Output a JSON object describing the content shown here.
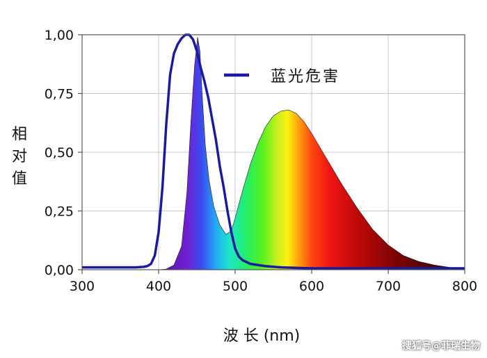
{
  "chart_data": {
    "type": "line",
    "title": "",
    "xlabel": "波 长 (nm)",
    "ylabel": "相对值",
    "xlim": [
      300,
      800
    ],
    "ylim": [
      0,
      1
    ],
    "x_ticks": [
      "300",
      "400",
      "500",
      "600",
      "700",
      "800"
    ],
    "y_ticks": [
      "0,00",
      "0,25",
      "0,50",
      "0,75",
      "1,00"
    ],
    "grid": true,
    "legend_position": "top-right",
    "series": [
      {
        "name": "蓝光危害",
        "kind": "line",
        "color": "#1a1aa0",
        "points": [
          [
            300,
            0.01
          ],
          [
            370,
            0.01
          ],
          [
            380,
            0.012
          ],
          [
            385,
            0.015
          ],
          [
            390,
            0.025
          ],
          [
            395,
            0.06
          ],
          [
            400,
            0.16
          ],
          [
            405,
            0.35
          ],
          [
            410,
            0.62
          ],
          [
            415,
            0.83
          ],
          [
            420,
            0.92
          ],
          [
            425,
            0.96
          ],
          [
            430,
            0.985
          ],
          [
            435,
            1.0
          ],
          [
            440,
            1.0
          ],
          [
            445,
            0.98
          ],
          [
            450,
            0.93
          ],
          [
            455,
            0.86
          ],
          [
            460,
            0.8
          ],
          [
            465,
            0.73
          ],
          [
            470,
            0.64
          ],
          [
            475,
            0.55
          ],
          [
            480,
            0.44
          ],
          [
            485,
            0.35
          ],
          [
            490,
            0.25
          ],
          [
            495,
            0.16
          ],
          [
            500,
            0.09
          ],
          [
            505,
            0.055
          ],
          [
            510,
            0.04
          ],
          [
            520,
            0.025
          ],
          [
            540,
            0.015
          ],
          [
            560,
            0.01
          ],
          [
            600,
            0.006
          ],
          [
            700,
            0.006
          ],
          [
            800,
            0.006
          ]
        ]
      },
      {
        "name": "",
        "kind": "spectrum-area",
        "points": [
          [
            400,
            0.0
          ],
          [
            410,
            0.003
          ],
          [
            420,
            0.02
          ],
          [
            430,
            0.1
          ],
          [
            437,
            0.33
          ],
          [
            442,
            0.62
          ],
          [
            447,
            0.87
          ],
          [
            451,
            0.99
          ],
          [
            454,
            0.93
          ],
          [
            457,
            0.74
          ],
          [
            461,
            0.53
          ],
          [
            466,
            0.38
          ],
          [
            472,
            0.27
          ],
          [
            480,
            0.19
          ],
          [
            488,
            0.15
          ],
          [
            495,
            0.165
          ],
          [
            500,
            0.22
          ],
          [
            510,
            0.34
          ],
          [
            520,
            0.45
          ],
          [
            530,
            0.54
          ],
          [
            540,
            0.61
          ],
          [
            550,
            0.655
          ],
          [
            560,
            0.675
          ],
          [
            570,
            0.68
          ],
          [
            580,
            0.665
          ],
          [
            590,
            0.63
          ],
          [
            600,
            0.58
          ],
          [
            620,
            0.47
          ],
          [
            640,
            0.36
          ],
          [
            660,
            0.26
          ],
          [
            680,
            0.17
          ],
          [
            700,
            0.105
          ],
          [
            720,
            0.06
          ],
          [
            740,
            0.035
          ],
          [
            760,
            0.02
          ],
          [
            780,
            0.01
          ],
          [
            800,
            0.004
          ]
        ]
      }
    ]
  },
  "watermark": "搜狐号@菲瑞生物"
}
